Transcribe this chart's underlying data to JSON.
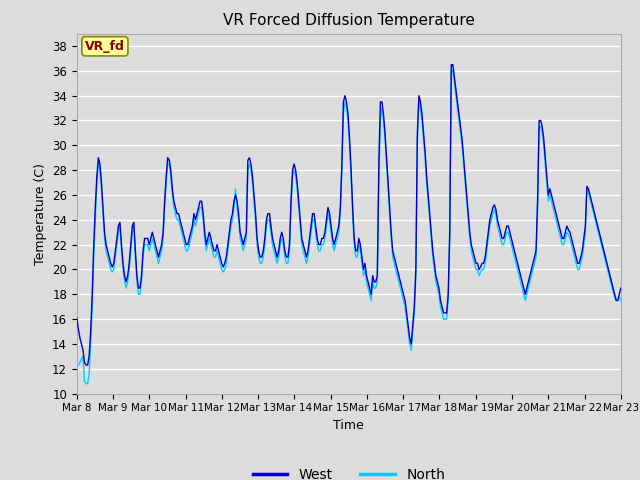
{
  "title": "VR Forced Diffusion Temperature",
  "ylabel": "Temperature (C)",
  "xlabel": "Time",
  "annotation_label": "VR_fd",
  "ylim": [
    10,
    39
  ],
  "yticks": [
    10,
    12,
    14,
    16,
    18,
    20,
    22,
    24,
    26,
    28,
    30,
    32,
    34,
    36,
    38
  ],
  "west_color": "#0000CD",
  "north_color": "#00CCFF",
  "fig_bg": "#DCDCDC",
  "plot_bg": "#DCDCDC",
  "legend_west": "West",
  "legend_north": "North",
  "x_tick_labels": [
    "Mar 8",
    "Mar 9",
    "Mar 10",
    "Mar 11",
    "Mar 12",
    "Mar 13",
    "Mar 14",
    "Mar 15",
    "Mar 16",
    "Mar 17",
    "Mar 18",
    "Mar 19",
    "Mar 20",
    "Mar 21",
    "Mar 22",
    "Mar 23"
  ],
  "west_data": [
    16.1,
    15.2,
    14.5,
    14.0,
    13.5,
    12.5,
    12.3,
    12.3,
    13.0,
    15.0,
    18.0,
    22.0,
    25.0,
    27.5,
    29.0,
    28.5,
    27.0,
    25.0,
    23.0,
    22.0,
    21.5,
    21.0,
    20.5,
    20.2,
    20.5,
    21.5,
    22.5,
    23.5,
    23.8,
    22.0,
    20.5,
    19.5,
    19.0,
    19.5,
    20.5,
    22.0,
    23.5,
    23.8,
    21.5,
    19.5,
    18.5,
    18.5,
    19.5,
    21.5,
    22.5,
    22.5,
    22.5,
    22.0,
    22.5,
    23.0,
    22.5,
    22.0,
    21.5,
    21.0,
    21.5,
    22.0,
    23.0,
    25.5,
    27.5,
    29.0,
    28.8,
    28.0,
    26.5,
    25.5,
    25.0,
    24.5,
    24.5,
    24.0,
    23.5,
    23.0,
    22.5,
    22.0,
    22.0,
    22.5,
    23.0,
    23.5,
    24.5,
    24.0,
    24.5,
    25.0,
    25.5,
    25.5,
    24.5,
    23.0,
    22.0,
    22.5,
    23.0,
    22.5,
    22.0,
    21.5,
    21.5,
    22.0,
    21.5,
    21.0,
    20.5,
    20.2,
    20.5,
    21.0,
    22.0,
    23.0,
    24.0,
    24.5,
    25.5,
    26.0,
    25.5,
    24.5,
    23.0,
    22.5,
    22.0,
    22.5,
    23.0,
    28.8,
    29.0,
    28.5,
    27.5,
    26.0,
    24.5,
    22.5,
    21.5,
    21.0,
    21.0,
    21.5,
    22.5,
    24.0,
    24.5,
    24.5,
    23.5,
    22.5,
    22.0,
    21.5,
    21.0,
    21.5,
    22.5,
    23.0,
    22.5,
    21.5,
    21.0,
    21.0,
    22.0,
    25.5,
    28.0,
    28.5,
    28.0,
    27.0,
    25.5,
    24.0,
    22.5,
    22.0,
    21.5,
    21.0,
    21.5,
    22.5,
    23.5,
    24.5,
    24.5,
    23.5,
    22.5,
    22.0,
    22.0,
    22.5,
    22.5,
    23.0,
    24.0,
    25.0,
    24.5,
    23.5,
    22.5,
    22.0,
    22.5,
    23.0,
    23.5,
    25.0,
    28.5,
    33.5,
    34.0,
    33.5,
    32.5,
    30.5,
    28.0,
    25.0,
    22.5,
    21.5,
    21.5,
    22.5,
    22.0,
    21.0,
    20.0,
    20.5,
    19.5,
    19.0,
    18.5,
    18.0,
    19.5,
    19.0,
    19.0,
    19.5,
    28.5,
    33.5,
    33.5,
    32.5,
    31.0,
    29.0,
    27.0,
    25.0,
    23.0,
    21.5,
    21.0,
    20.5,
    20.0,
    19.5,
    19.0,
    18.5,
    18.0,
    17.5,
    16.5,
    15.5,
    14.5,
    14.0,
    15.5,
    17.0,
    20.0,
    31.0,
    34.0,
    33.5,
    32.5,
    31.0,
    29.5,
    27.5,
    26.0,
    24.5,
    23.0,
    21.5,
    20.5,
    19.5,
    19.0,
    18.5,
    17.5,
    17.0,
    16.5,
    16.5,
    16.5,
    18.0,
    23.0,
    36.5,
    36.5,
    35.5,
    34.5,
    33.5,
    32.5,
    31.5,
    30.5,
    29.0,
    27.5,
    26.0,
    24.5,
    23.0,
    22.0,
    21.5,
    21.0,
    20.5,
    20.5,
    20.0,
    20.2,
    20.5,
    20.5,
    21.0,
    22.0,
    23.0,
    24.0,
    24.5,
    25.0,
    25.2,
    24.8,
    24.0,
    23.5,
    23.0,
    22.5,
    22.5,
    23.0,
    23.5,
    23.5,
    23.0,
    22.5,
    22.0,
    21.5,
    21.0,
    20.5,
    20.0,
    19.5,
    19.0,
    18.5,
    18.0,
    18.5,
    19.0,
    19.5,
    20.0,
    20.5,
    21.0,
    21.5,
    25.5,
    32.0,
    32.0,
    31.5,
    30.5,
    29.0,
    27.5,
    26.0,
    26.5,
    26.0,
    25.5,
    25.0,
    24.5,
    24.0,
    23.5,
    23.0,
    22.5,
    22.5,
    23.0,
    23.5,
    23.2,
    23.0,
    22.5,
    22.0,
    21.5,
    21.0,
    20.5,
    20.5,
    21.0,
    21.5,
    22.5,
    23.5,
    26.7,
    26.5,
    26.0,
    25.5,
    25.0,
    24.5,
    24.0,
    23.5,
    23.0,
    22.5,
    22.0,
    21.5,
    21.0,
    20.5,
    20.0,
    19.5,
    19.0,
    18.5,
    18.0,
    17.5,
    17.5,
    18.0,
    18.5
  ],
  "north_data": [
    12.5,
    12.3,
    12.5,
    12.8,
    13.0,
    11.0,
    10.8,
    10.8,
    11.5,
    14.0,
    17.0,
    21.0,
    24.0,
    27.0,
    28.5,
    28.0,
    26.5,
    24.5,
    22.5,
    21.5,
    21.0,
    20.5,
    20.0,
    19.8,
    20.0,
    21.0,
    22.0,
    23.0,
    23.5,
    21.5,
    20.0,
    19.0,
    18.5,
    19.0,
    20.0,
    21.5,
    23.0,
    23.5,
    21.0,
    19.0,
    18.0,
    18.0,
    19.0,
    21.0,
    22.0,
    22.0,
    22.0,
    21.5,
    22.0,
    22.5,
    22.0,
    21.5,
    21.0,
    20.5,
    21.0,
    21.5,
    22.5,
    25.0,
    27.0,
    28.5,
    28.5,
    27.5,
    26.0,
    25.0,
    24.5,
    24.0,
    24.0,
    23.5,
    23.0,
    22.5,
    22.0,
    21.5,
    21.5,
    22.0,
    22.5,
    23.0,
    24.0,
    23.5,
    24.0,
    24.5,
    25.0,
    25.0,
    24.0,
    22.5,
    21.5,
    22.0,
    22.5,
    22.0,
    21.5,
    21.0,
    21.0,
    21.5,
    21.0,
    20.5,
    20.0,
    19.8,
    20.0,
    20.5,
    21.5,
    22.5,
    23.5,
    24.0,
    25.0,
    26.5,
    25.0,
    24.0,
    22.5,
    22.0,
    21.5,
    22.0,
    22.5,
    28.0,
    28.5,
    28.0,
    27.0,
    25.5,
    24.0,
    22.0,
    21.0,
    20.5,
    20.5,
    21.0,
    22.0,
    23.5,
    24.0,
    24.0,
    23.0,
    22.0,
    21.5,
    21.0,
    20.5,
    21.0,
    22.0,
    22.5,
    22.0,
    21.0,
    20.5,
    20.5,
    21.5,
    25.0,
    27.5,
    28.0,
    27.5,
    26.5,
    25.0,
    23.5,
    22.0,
    21.5,
    21.0,
    20.5,
    21.0,
    22.0,
    23.0,
    24.0,
    24.0,
    23.0,
    22.0,
    21.5,
    21.5,
    22.0,
    22.0,
    22.5,
    23.5,
    24.5,
    24.0,
    23.0,
    22.0,
    21.5,
    22.0,
    22.5,
    23.0,
    24.5,
    28.0,
    32.5,
    33.5,
    33.0,
    32.0,
    30.0,
    27.5,
    24.5,
    22.0,
    21.0,
    21.0,
    22.0,
    21.5,
    20.5,
    19.5,
    20.0,
    19.0,
    18.5,
    18.0,
    17.5,
    19.0,
    18.5,
    18.5,
    19.0,
    27.5,
    32.0,
    33.0,
    32.0,
    30.5,
    28.5,
    26.5,
    24.5,
    22.5,
    21.0,
    20.5,
    20.0,
    19.5,
    19.0,
    18.5,
    18.0,
    17.5,
    17.0,
    16.0,
    15.0,
    14.0,
    13.5,
    15.0,
    16.5,
    19.5,
    30.5,
    33.5,
    33.0,
    32.0,
    30.5,
    29.0,
    27.0,
    25.5,
    24.0,
    22.5,
    21.0,
    20.0,
    19.0,
    18.5,
    18.0,
    17.0,
    16.5,
    16.0,
    16.0,
    16.0,
    17.5,
    22.5,
    36.0,
    36.0,
    35.0,
    34.0,
    33.0,
    32.0,
    31.0,
    30.0,
    28.5,
    27.0,
    25.5,
    24.0,
    22.5,
    21.5,
    21.0,
    20.5,
    20.0,
    20.0,
    19.5,
    19.8,
    20.0,
    20.0,
    20.5,
    21.5,
    22.5,
    23.5,
    24.0,
    24.5,
    24.8,
    24.4,
    23.5,
    23.0,
    22.5,
    22.0,
    22.0,
    22.5,
    23.0,
    23.0,
    22.5,
    22.0,
    21.5,
    21.0,
    20.5,
    20.0,
    19.5,
    19.0,
    18.5,
    18.0,
    17.5,
    18.0,
    18.5,
    19.0,
    19.5,
    20.0,
    20.5,
    21.0,
    25.0,
    31.5,
    31.5,
    31.0,
    30.0,
    28.5,
    27.0,
    25.5,
    26.0,
    25.5,
    25.0,
    24.5,
    24.0,
    23.5,
    23.0,
    22.5,
    22.0,
    22.0,
    22.5,
    23.0,
    22.8,
    22.5,
    22.0,
    21.5,
    21.0,
    20.5,
    20.0,
    20.0,
    20.5,
    21.0,
    22.0,
    23.0,
    26.5,
    26.2,
    25.7,
    25.2,
    24.7,
    24.2,
    23.7,
    23.2,
    22.7,
    22.2,
    21.7,
    21.2,
    20.7,
    20.2,
    19.7,
    19.2,
    18.7,
    18.2,
    17.8,
    17.5,
    17.5,
    17.8,
    17.5
  ]
}
